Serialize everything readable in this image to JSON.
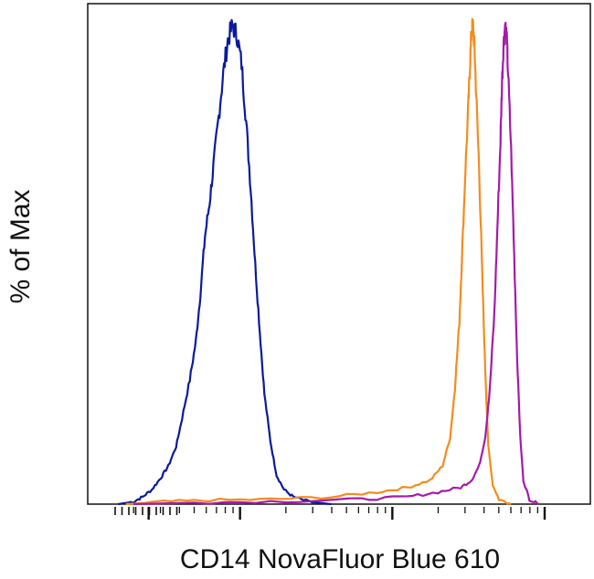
{
  "chart_data": {
    "type": "line",
    "xlabel": "CD14 NovaFluor Blue 610",
    "ylabel": "% of Max",
    "x_scale": "log",
    "xlim": [
      -1.0,
      2.3
    ],
    "ylim": [
      0,
      100
    ],
    "grid": false,
    "legend": "none",
    "series": [
      {
        "color": "#0a1a9c",
        "points": [
          [
            -0.8,
            0
          ],
          [
            -0.7,
            0.5
          ],
          [
            -0.64,
            1.5
          ],
          [
            -0.58,
            3
          ],
          [
            -0.52,
            5.5
          ],
          [
            -0.47,
            8
          ],
          [
            -0.42,
            12
          ],
          [
            -0.38,
            18
          ],
          [
            -0.33,
            26
          ],
          [
            -0.29,
            34
          ],
          [
            -0.26,
            44
          ],
          [
            -0.23,
            56
          ],
          [
            -0.2,
            63
          ],
          [
            -0.17,
            72
          ],
          [
            -0.14,
            81
          ],
          [
            -0.11,
            90
          ],
          [
            -0.08,
            97
          ],
          [
            -0.05,
            100
          ],
          [
            -0.02,
            98
          ],
          [
            0.01,
            92
          ],
          [
            0.04,
            80
          ],
          [
            0.07,
            66
          ],
          [
            0.1,
            50
          ],
          [
            0.13,
            36
          ],
          [
            0.16,
            23
          ],
          [
            0.2,
            13
          ],
          [
            0.24,
            6
          ],
          [
            0.29,
            3
          ],
          [
            0.35,
            1.5
          ],
          [
            0.45,
            0.5
          ],
          [
            0.6,
            0
          ]
        ]
      },
      {
        "color": "#f28c1e",
        "points": [
          [
            -0.75,
            0
          ],
          [
            -0.5,
            0.5
          ],
          [
            -0.2,
            0.8
          ],
          [
            0.2,
            1.0
          ],
          [
            0.6,
            1.5
          ],
          [
            0.9,
            2.5
          ],
          [
            1.1,
            3.5
          ],
          [
            1.25,
            5
          ],
          [
            1.33,
            8
          ],
          [
            1.38,
            14
          ],
          [
            1.41,
            24
          ],
          [
            1.44,
            38
          ],
          [
            1.46,
            54
          ],
          [
            1.48,
            70
          ],
          [
            1.5,
            84
          ],
          [
            1.51,
            92
          ],
          [
            1.52,
            99
          ],
          [
            1.53,
            100
          ],
          [
            1.54,
            95
          ],
          [
            1.55,
            86
          ],
          [
            1.57,
            70
          ],
          [
            1.59,
            48
          ],
          [
            1.61,
            28
          ],
          [
            1.63,
            12
          ],
          [
            1.66,
            4
          ],
          [
            1.7,
            1
          ],
          [
            1.78,
            0
          ]
        ]
      },
      {
        "color": "#a51aa8",
        "points": [
          [
            -0.7,
            0
          ],
          [
            -0.3,
            0.3
          ],
          [
            0.3,
            0.6
          ],
          [
            0.8,
            1.0
          ],
          [
            1.1,
            1.5
          ],
          [
            1.3,
            2.5
          ],
          [
            1.45,
            3.5
          ],
          [
            1.52,
            5
          ],
          [
            1.57,
            8
          ],
          [
            1.61,
            14
          ],
          [
            1.64,
            24
          ],
          [
            1.67,
            40
          ],
          [
            1.69,
            58
          ],
          [
            1.71,
            76
          ],
          [
            1.72,
            88
          ],
          [
            1.73,
            96
          ],
          [
            1.74,
            100
          ],
          [
            1.75,
            98
          ],
          [
            1.76,
            90
          ],
          [
            1.78,
            74
          ],
          [
            1.8,
            52
          ],
          [
            1.82,
            30
          ],
          [
            1.84,
            14
          ],
          [
            1.86,
            5
          ],
          [
            1.9,
            1
          ],
          [
            1.96,
            0
          ]
        ]
      }
    ]
  }
}
